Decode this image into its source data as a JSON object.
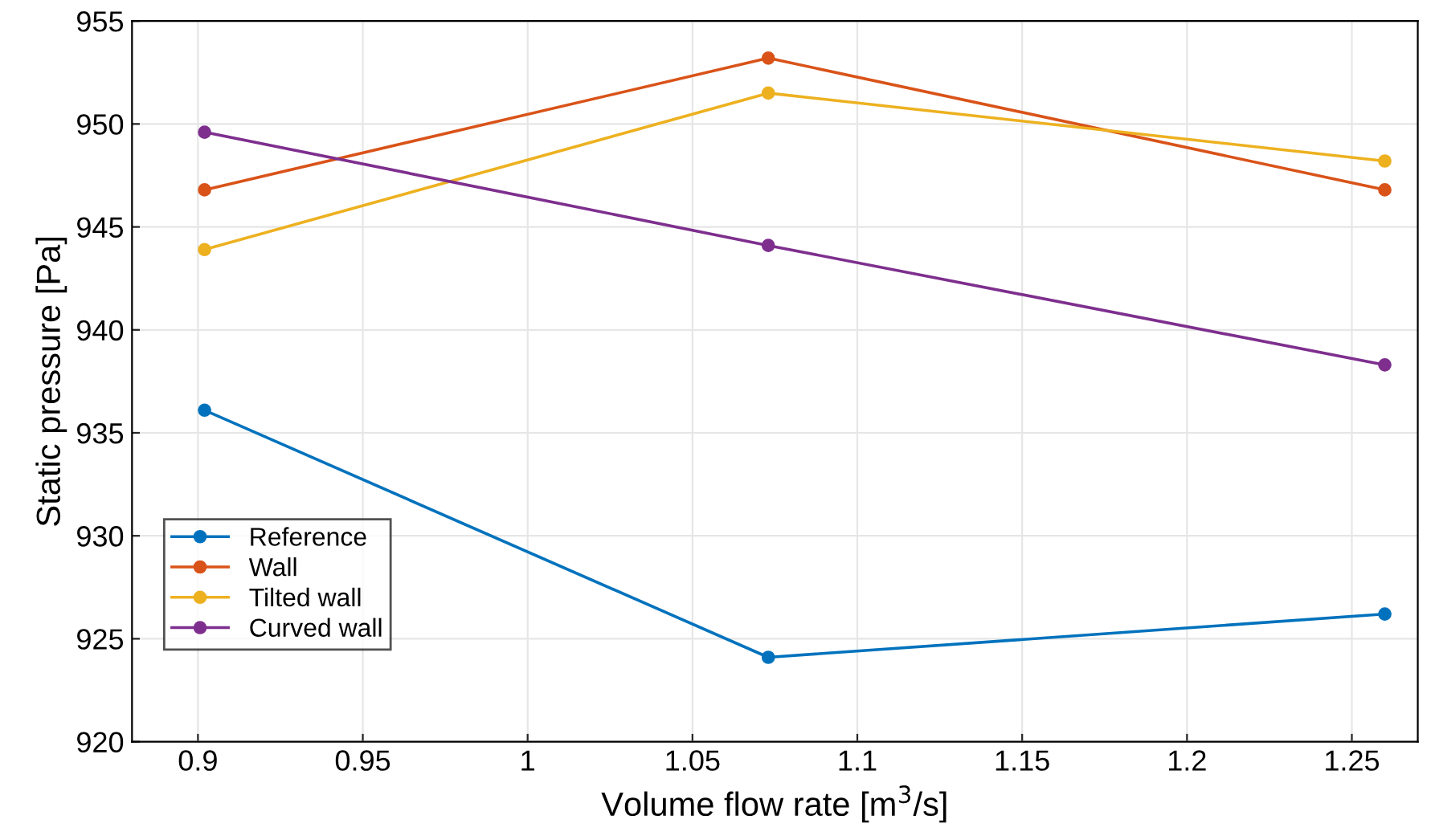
{
  "chart_data": {
    "type": "line",
    "xlabel": "Volume flow rate [m$^{3}$/s]",
    "ylabel": "Static pressure [Pa]",
    "x": [
      0.902,
      1.073,
      1.26
    ],
    "series": [
      {
        "name": "Reference",
        "color": "#0072bd",
        "values": [
          936.1,
          924.1,
          926.2
        ]
      },
      {
        "name": "Wall",
        "color": "#d95319",
        "values": [
          946.8,
          953.2,
          946.8
        ]
      },
      {
        "name": "Tilted wall",
        "color": "#edb120",
        "values": [
          943.9,
          951.5,
          948.2
        ]
      },
      {
        "name": "Curved wall",
        "color": "#7e2f8e",
        "values": [
          949.6,
          944.1,
          938.3
        ]
      }
    ],
    "xlim": [
      0.88,
      1.27
    ],
    "xticks": [
      0.9,
      0.95,
      1,
      1.05,
      1.1,
      1.15,
      1.2,
      1.25
    ],
    "ylim": [
      920,
      955
    ],
    "yticks": [
      920,
      925,
      930,
      935,
      940,
      945,
      950,
      955
    ],
    "grid": true,
    "legend": "bottom left",
    "marker": "circle",
    "line_style": "solid"
  }
}
